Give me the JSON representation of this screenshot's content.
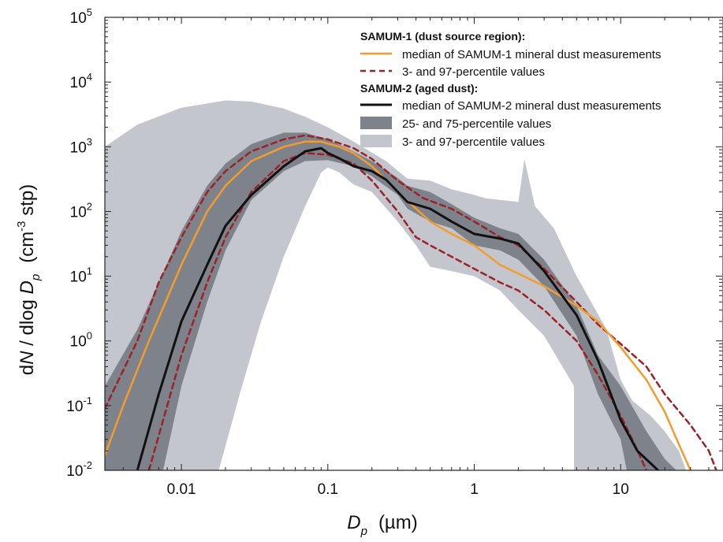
{
  "chart_data": {
    "type": "line",
    "xscale": "log",
    "yscale": "log",
    "xlim": [
      0.003,
      50
    ],
    "ylim": [
      0.01,
      100000
    ],
    "grid": false,
    "legend_position": "top-right",
    "xlabel": {
      "main": "D",
      "sub": "p",
      "unit": "(µm)"
    },
    "ylabel": {
      "prefix": "d",
      "italic_n": "N",
      "mid": " / dlog ",
      "italic_d": "D",
      "sub": "p",
      "unit_pre": "(cm",
      "unit_sup": "-3",
      "unit_post": " stp)"
    },
    "x_ticks": [
      {
        "value": 0.01,
        "label": "0.01"
      },
      {
        "value": 0.1,
        "label": "0.1"
      },
      {
        "value": 1,
        "label": "1"
      },
      {
        "value": 10,
        "label": "10"
      }
    ],
    "y_ticks": [
      {
        "value": 0.01,
        "exp": "-2"
      },
      {
        "value": 0.1,
        "exp": "-1"
      },
      {
        "value": 1,
        "exp": "0"
      },
      {
        "value": 10,
        "exp": "1"
      },
      {
        "value": 100,
        "exp": "2"
      },
      {
        "value": 1000,
        "exp": "3"
      },
      {
        "value": 10000,
        "exp": "4"
      },
      {
        "value": 100000,
        "exp": "5"
      }
    ],
    "legend": {
      "group1_title": "SAMUM-1 (dust source region):",
      "s1_median": "median of SAMUM-1 mineral dust measurements",
      "s1_pct": "3- and 97-percentile values",
      "group2_title": "SAMUM-2 (aged dust):",
      "s2_median": "median of SAMUM-2 mineral dust measurements",
      "s2_q": "25- and 75-percentile values",
      "s2_pct": "3- and 97-percentile values"
    },
    "colors": {
      "s1_median": "#f39c2e",
      "s1_pct": "#9b2226",
      "s2_median": "#111111",
      "s2_q_band": "#7e838b",
      "s2_pct_band": "#c3c6cd"
    },
    "series": {
      "s2_pct_band": {
        "upper": [
          [
            0.003,
            1000
          ],
          [
            0.005,
            2200
          ],
          [
            0.01,
            4000
          ],
          [
            0.02,
            5200
          ],
          [
            0.03,
            5000
          ],
          [
            0.05,
            3900
          ],
          [
            0.07,
            2900
          ],
          [
            0.1,
            2000
          ],
          [
            0.15,
            1200
          ],
          [
            0.25,
            600
          ],
          [
            0.35,
            320
          ],
          [
            0.5,
            300
          ],
          [
            0.7,
            220
          ],
          [
            1,
            180
          ],
          [
            1.2,
            160
          ],
          [
            2,
            140
          ],
          [
            2.2,
            650
          ],
          [
            2.6,
            120
          ],
          [
            3.5,
            55
          ],
          [
            5,
            10
          ],
          [
            8,
            1.5
          ],
          [
            10,
            0.25
          ],
          [
            12,
            0.12
          ],
          [
            16,
            0.07
          ],
          [
            20,
            0.04
          ],
          [
            25,
            0.02
          ],
          [
            28,
            0.01
          ]
        ],
        "lower": [
          [
            0.018,
            0.01
          ],
          [
            0.025,
            0.15
          ],
          [
            0.035,
            2
          ],
          [
            0.05,
            20
          ],
          [
            0.07,
            120
          ],
          [
            0.09,
            400
          ],
          [
            0.1,
            480
          ],
          [
            0.12,
            400
          ],
          [
            0.15,
            260
          ],
          [
            0.2,
            200
          ],
          [
            0.3,
            70
          ],
          [
            0.4,
            30
          ],
          [
            0.5,
            14
          ],
          [
            0.7,
            12
          ],
          [
            1,
            10
          ],
          [
            1.5,
            6
          ],
          [
            2,
            3
          ],
          [
            3,
            1.2
          ],
          [
            4.8,
            0.2
          ],
          [
            4.8,
            0.01
          ]
        ]
      },
      "s2_q_band": {
        "upper": [
          [
            0.003,
            0.2
          ],
          [
            0.005,
            1.5
          ],
          [
            0.007,
            8
          ],
          [
            0.01,
            50
          ],
          [
            0.015,
            250
          ],
          [
            0.02,
            550
          ],
          [
            0.03,
            1100
          ],
          [
            0.05,
            1650
          ],
          [
            0.07,
            1650
          ],
          [
            0.1,
            1300
          ],
          [
            0.15,
            850
          ],
          [
            0.2,
            600
          ],
          [
            0.3,
            330
          ],
          [
            0.35,
            250
          ],
          [
            0.5,
            200
          ],
          [
            0.7,
            130
          ],
          [
            1,
            80
          ],
          [
            1.5,
            55
          ],
          [
            2,
            45
          ],
          [
            3,
            18
          ],
          [
            5,
            3.5
          ],
          [
            7,
            0.6
          ],
          [
            10,
            0.2
          ],
          [
            15,
            0.04
          ],
          [
            20,
            0.015
          ],
          [
            24,
            0.01
          ]
        ],
        "lower": [
          [
            0.0075,
            0.01
          ],
          [
            0.01,
            0.2
          ],
          [
            0.015,
            4
          ],
          [
            0.02,
            25
          ],
          [
            0.03,
            150
          ],
          [
            0.05,
            420
          ],
          [
            0.07,
            600
          ],
          [
            0.1,
            620
          ],
          [
            0.15,
            500
          ],
          [
            0.2,
            350
          ],
          [
            0.3,
            180
          ],
          [
            0.35,
            110
          ],
          [
            0.5,
            70
          ],
          [
            0.7,
            55
          ],
          [
            1,
            30
          ],
          [
            1.5,
            25
          ],
          [
            2,
            18
          ],
          [
            3,
            7
          ],
          [
            5,
            1.2
          ],
          [
            7,
            0.15
          ],
          [
            10,
            0.03
          ],
          [
            11,
            0.01
          ]
        ]
      },
      "s1_median": [
        [
          0.003,
          0.017
        ],
        [
          0.004,
          0.1
        ],
        [
          0.006,
          1
        ],
        [
          0.01,
          15
        ],
        [
          0.015,
          100
        ],
        [
          0.02,
          250
        ],
        [
          0.03,
          600
        ],
        [
          0.05,
          1000
        ],
        [
          0.07,
          1200
        ],
        [
          0.09,
          1200
        ],
        [
          0.12,
          1000
        ],
        [
          0.15,
          800
        ],
        [
          0.2,
          500
        ],
        [
          0.3,
          200
        ],
        [
          0.5,
          70
        ],
        [
          0.7,
          45
        ],
        [
          1,
          30
        ],
        [
          1.5,
          15
        ],
        [
          2,
          11
        ],
        [
          3,
          7
        ],
        [
          5,
          3.5
        ],
        [
          7,
          2
        ],
        [
          10,
          0.8
        ],
        [
          15,
          0.25
        ],
        [
          20,
          0.08
        ],
        [
          25,
          0.025
        ],
        [
          30,
          0.01
        ]
      ],
      "s1_p97": [
        [
          0.003,
          0.09
        ],
        [
          0.005,
          1
        ],
        [
          0.007,
          8
        ],
        [
          0.01,
          40
        ],
        [
          0.015,
          200
        ],
        [
          0.02,
          420
        ],
        [
          0.03,
          850
        ],
        [
          0.05,
          1300
        ],
        [
          0.07,
          1500
        ],
        [
          0.1,
          1300
        ],
        [
          0.15,
          950
        ],
        [
          0.2,
          650
        ],
        [
          0.3,
          300
        ],
        [
          0.45,
          160
        ],
        [
          0.7,
          110
        ],
        [
          1,
          70
        ],
        [
          1.5,
          40
        ],
        [
          2,
          30
        ],
        [
          3,
          13
        ],
        [
          5,
          4
        ],
        [
          7,
          1.8
        ],
        [
          10,
          0.9
        ],
        [
          15,
          0.4
        ],
        [
          20,
          0.15
        ],
        [
          30,
          0.05
        ],
        [
          40,
          0.02
        ],
        [
          45,
          0.01
        ]
      ],
      "s1_p3": [
        [
          0.006,
          0.01
        ],
        [
          0.008,
          0.1
        ],
        [
          0.01,
          0.6
        ],
        [
          0.015,
          8
        ],
        [
          0.02,
          40
        ],
        [
          0.03,
          200
        ],
        [
          0.05,
          600
        ],
        [
          0.07,
          800
        ],
        [
          0.1,
          750
        ],
        [
          0.15,
          550
        ],
        [
          0.2,
          300
        ],
        [
          0.3,
          100
        ],
        [
          0.4,
          40
        ],
        [
          0.5,
          30
        ],
        [
          0.7,
          20
        ],
        [
          1,
          13
        ],
        [
          1.5,
          8
        ],
        [
          2,
          6
        ],
        [
          3,
          3
        ],
        [
          5,
          1
        ],
        [
          7,
          0.3
        ],
        [
          10,
          0.07
        ],
        [
          12,
          0.03
        ],
        [
          15,
          0.01
        ]
      ],
      "s2_median": [
        [
          0.005,
          0.01
        ],
        [
          0.007,
          0.15
        ],
        [
          0.01,
          2
        ],
        [
          0.015,
          15
        ],
        [
          0.02,
          60
        ],
        [
          0.03,
          180
        ],
        [
          0.04,
          320
        ],
        [
          0.05,
          500
        ],
        [
          0.07,
          850
        ],
        [
          0.09,
          950
        ],
        [
          0.1,
          800
        ],
        [
          0.12,
          660
        ],
        [
          0.15,
          500
        ],
        [
          0.2,
          420
        ],
        [
          0.25,
          310
        ],
        [
          0.35,
          140
        ],
        [
          0.5,
          110
        ],
        [
          0.7,
          70
        ],
        [
          1,
          45
        ],
        [
          1.5,
          38
        ],
        [
          2,
          32
        ],
        [
          3,
          12
        ],
        [
          5,
          2.5
        ],
        [
          7,
          0.5
        ],
        [
          10,
          0.06
        ],
        [
          13,
          0.02
        ],
        [
          18,
          0.01
        ]
      ]
    }
  }
}
